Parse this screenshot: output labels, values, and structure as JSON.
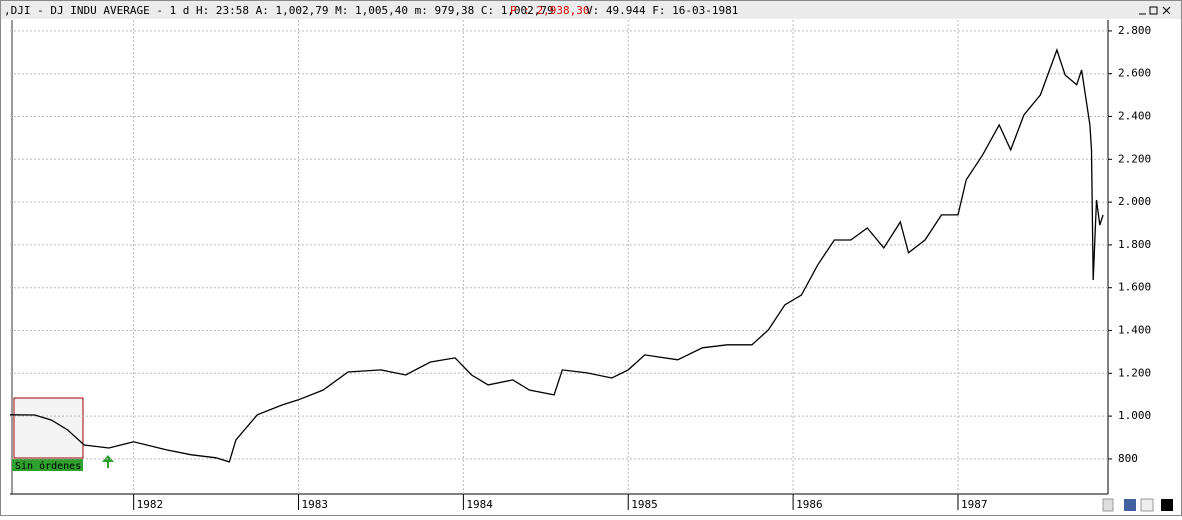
{
  "toolbar": {
    "text": ",DJI - DJ INDU AVERAGE -  1 d H: 23:58 A: 1,002,79 M: 1,005,40 m: 979,38 C: 1,002,79",
    "price": "P : 2,938,30",
    "rest": "V: 49.944 F: 16-03-1981"
  },
  "annotation": "Sin órdenes",
  "chart_data": {
    "type": "line",
    "color": "#000000",
    "grid": true,
    "x": [
      1981.25,
      1981.4,
      1981.5,
      1981.6,
      1981.7,
      1981.85,
      1982.0,
      1982.2,
      1982.35,
      1982.5,
      1982.58,
      1982.62,
      1982.75,
      1982.9,
      1983.0,
      1983.15,
      1983.3,
      1983.5,
      1983.65,
      1983.8,
      1983.95,
      1984.05,
      1984.15,
      1984.3,
      1984.4,
      1984.55,
      1984.6,
      1984.75,
      1984.9,
      1985.0,
      1985.1,
      1985.3,
      1985.45,
      1985.6,
      1985.75,
      1985.85,
      1985.95,
      1986.05,
      1986.15,
      1986.25,
      1986.35,
      1986.45,
      1986.55,
      1986.65,
      1986.7,
      1986.8,
      1986.9,
      1987.0,
      1987.05,
      1987.15,
      1987.25,
      1987.32,
      1987.4,
      1987.5,
      1987.6,
      1987.65,
      1987.72,
      1987.75,
      1987.8,
      1987.81,
      1987.82,
      1987.84,
      1987.86,
      1987.88
    ],
    "values": [
      1006,
      1005,
      982,
      935,
      865,
      851,
      880,
      842,
      819,
      805,
      786,
      889,
      1006,
      1052,
      1076,
      1122,
      1206,
      1216,
      1192,
      1253,
      1272,
      1192,
      1146,
      1169,
      1122,
      1099,
      1216,
      1202,
      1178,
      1216,
      1286,
      1263,
      1319,
      1333,
      1333,
      1403,
      1520,
      1566,
      1707,
      1823,
      1823,
      1879,
      1786,
      1907,
      1763,
      1823,
      1940,
      1940,
      2104,
      2221,
      2361,
      2244,
      2407,
      2501,
      2711,
      2594,
      2548,
      2618,
      2361,
      2244,
      1636,
      2010,
      1893,
      1940
    ],
    "xlim": [
      1981.25,
      1987.91
    ],
    "xticks": [
      1982,
      1983,
      1984,
      1985,
      1986,
      1987
    ],
    "ylim": [
      636,
      2851
    ],
    "yticks": [
      800,
      {
        "value": 1000,
        "label": "1.000"
      },
      {
        "value": 1200,
        "label": "1.200"
      },
      {
        "value": 1400,
        "label": "1.400"
      },
      {
        "value": 1600,
        "label": "1.600"
      },
      {
        "value": 1800,
        "label": "1.800"
      },
      {
        "value": 2000,
        "label": "2.000"
      },
      {
        "value": 2200,
        "label": "2.200"
      },
      {
        "value": 2400,
        "label": "2.400"
      },
      {
        "value": 2600,
        "label": "2.600"
      },
      {
        "value": 2800,
        "label": "2.800"
      }
    ]
  }
}
